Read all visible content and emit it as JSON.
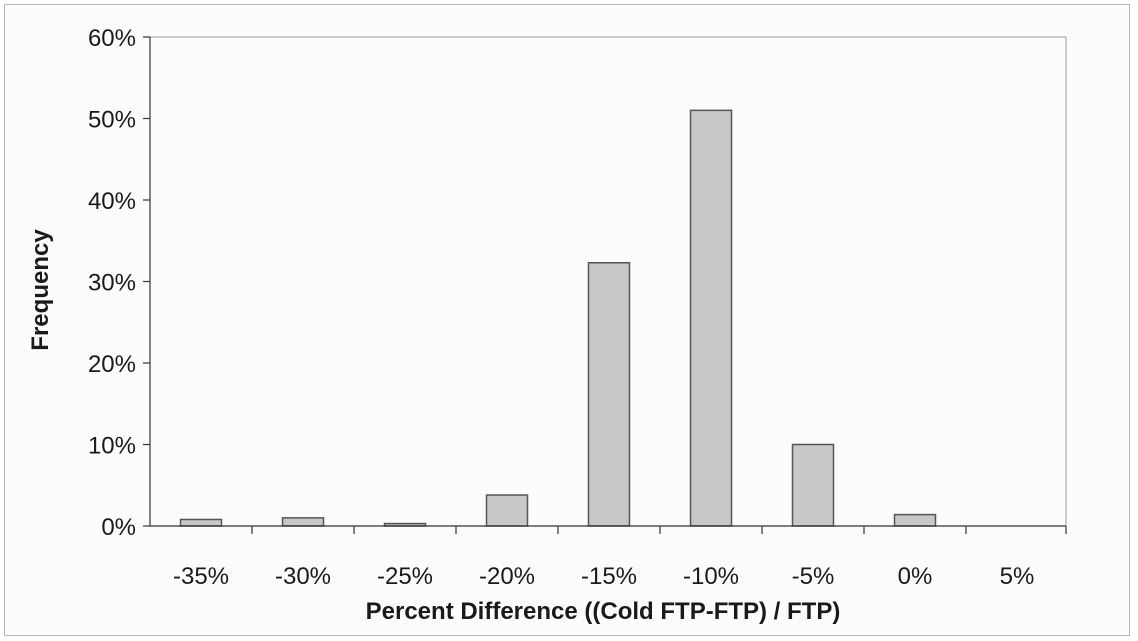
{
  "chart_data": {
    "type": "bar",
    "categories": [
      "-35%",
      "-30%",
      "-25%",
      "-20%",
      "-15%",
      "-10%",
      "-5%",
      "0%",
      "5%"
    ],
    "values": [
      0.8,
      1.0,
      0.3,
      3.8,
      32.3,
      51.0,
      10.0,
      1.4,
      0
    ],
    "title": "",
    "xlabel": "Percent Difference ((Cold FTP-FTP) / FTP)",
    "ylabel": "Frequency",
    "ylim": [
      0,
      60
    ],
    "yticks": [
      "0%",
      "10%",
      "20%",
      "30%",
      "40%",
      "50%",
      "60%"
    ],
    "grid": false,
    "legend": "none",
    "bar_color": "#c8c8c8",
    "bar_edge_color": "#555555"
  }
}
